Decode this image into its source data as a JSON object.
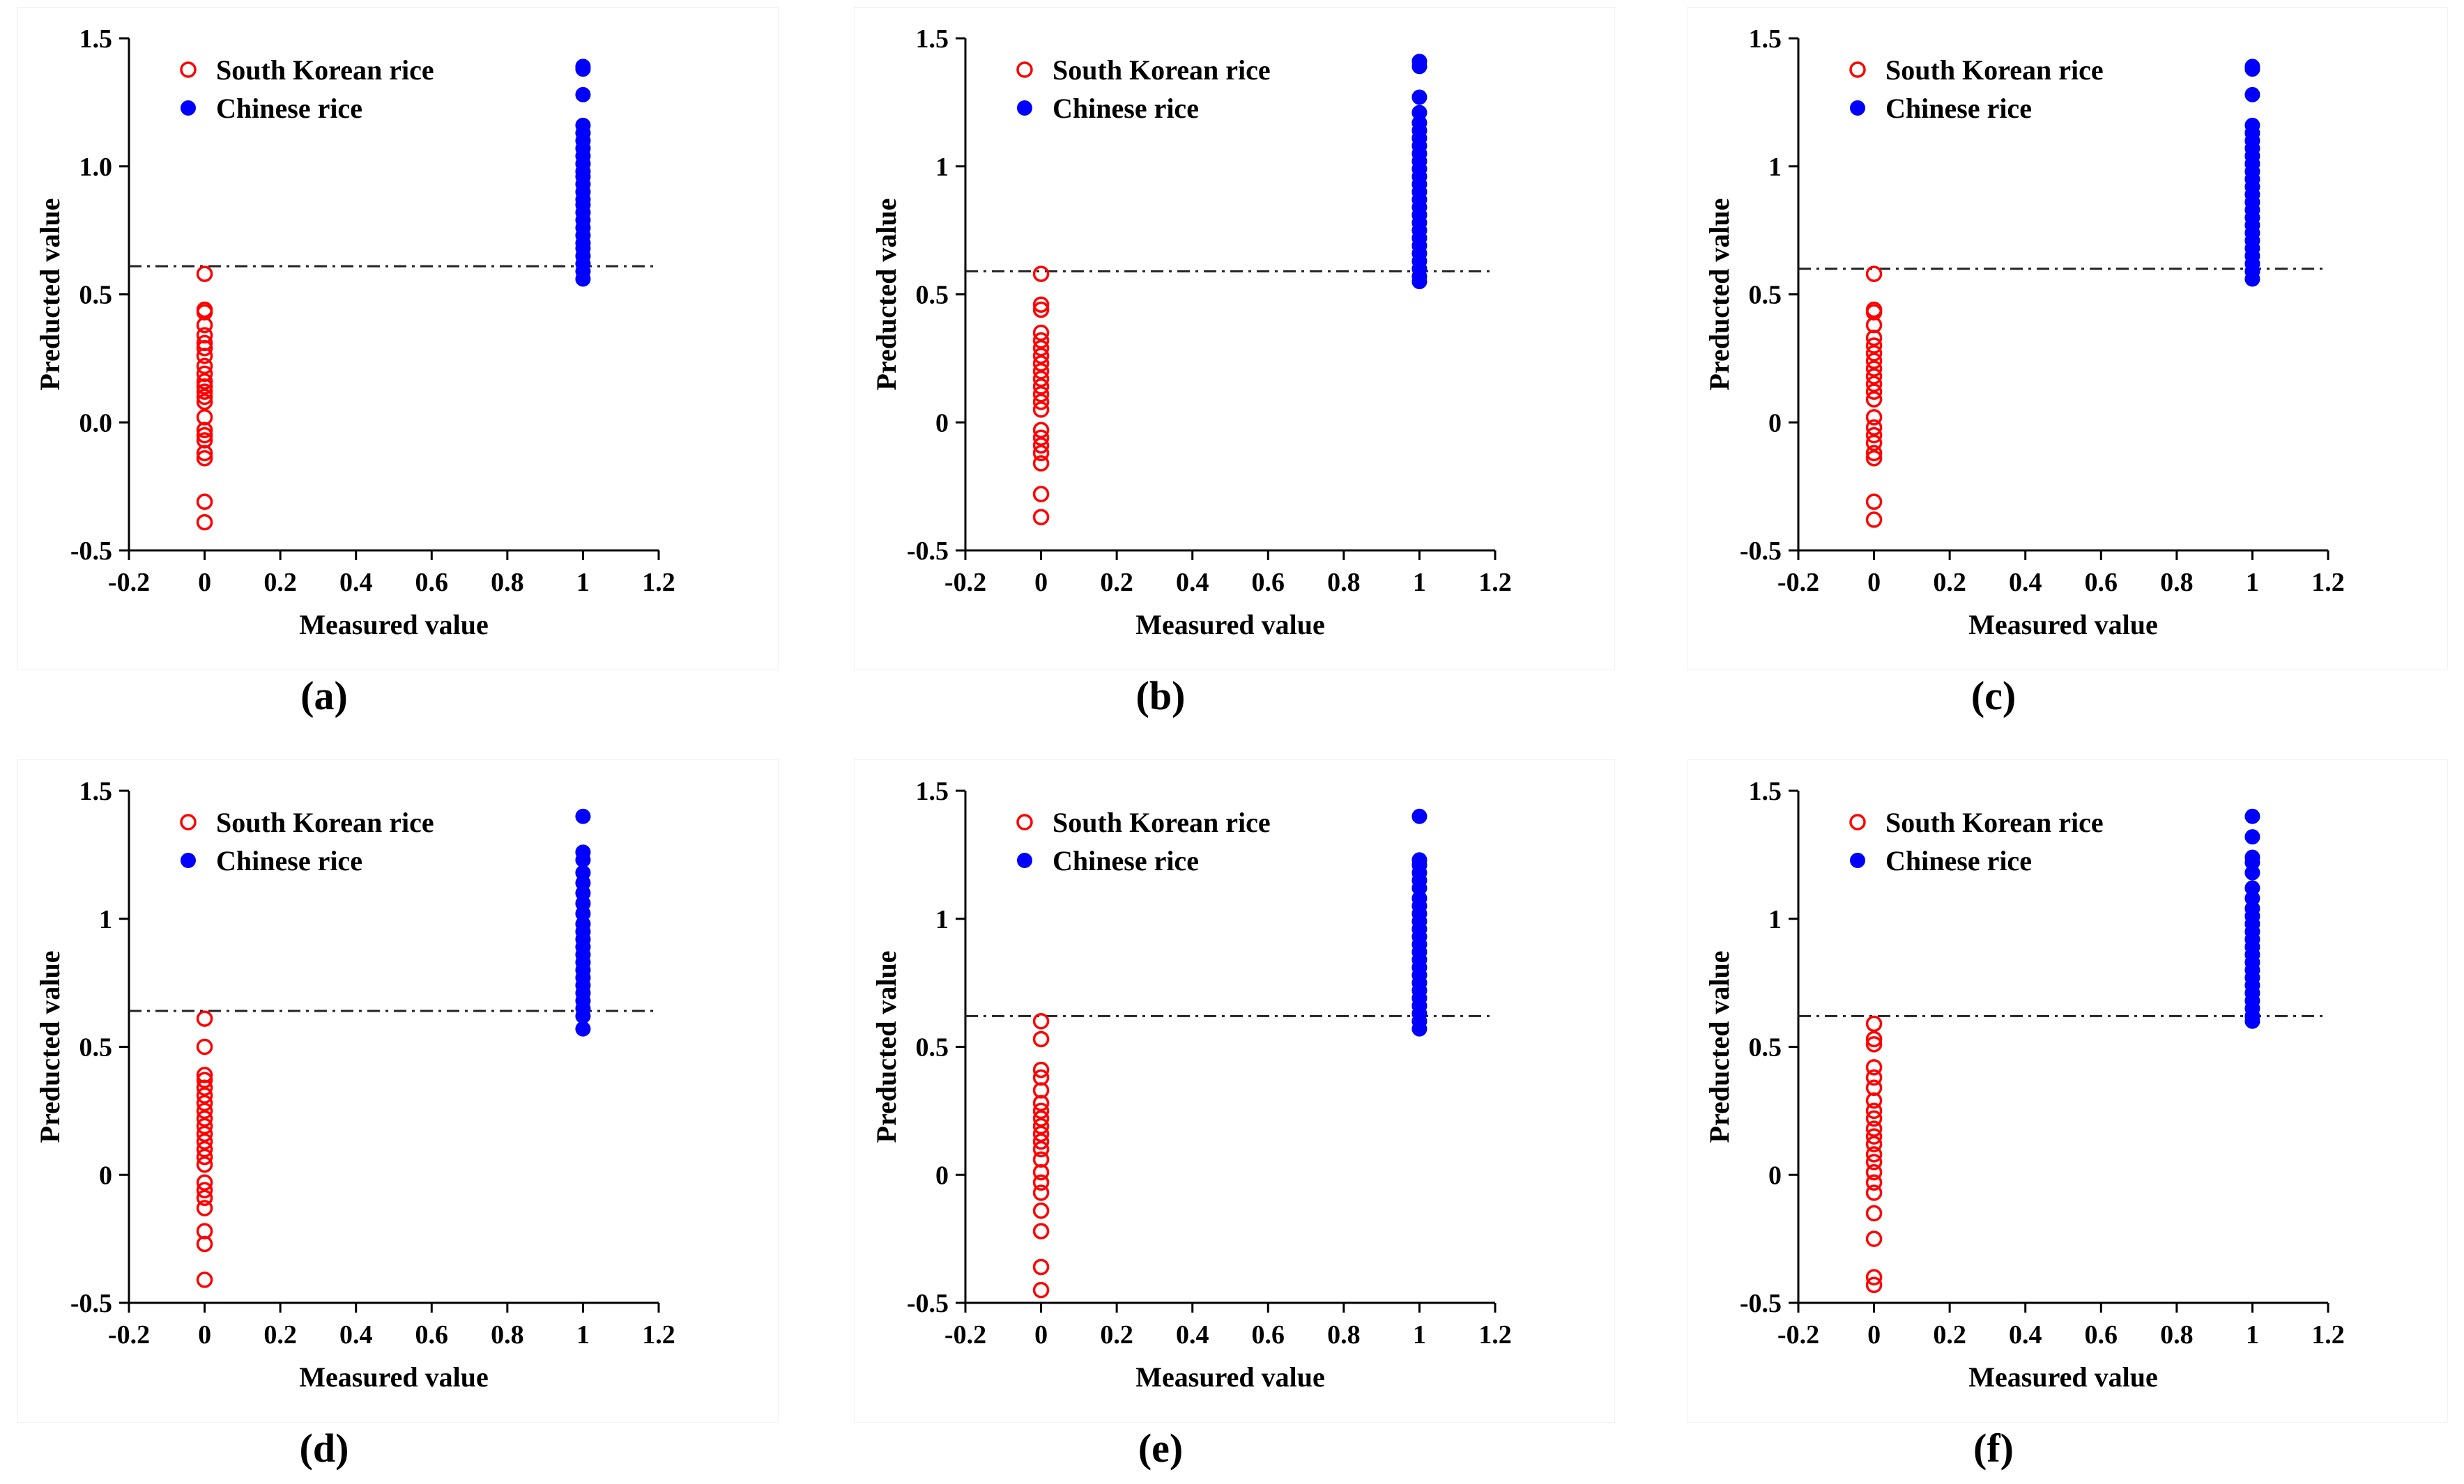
{
  "chart_data": [
    {
      "type": "scatter",
      "panel": "(a)",
      "xlabel": "Measured value",
      "ylabel": "Preducted value",
      "xlim": [
        -0.2,
        1.2
      ],
      "ylim": [
        -0.5,
        1.5
      ],
      "xticks": [
        "-0.2",
        "0",
        "0.2",
        "0.4",
        "0.6",
        "0.8",
        "1",
        "1.2"
      ],
      "yticks": [
        "-0.5",
        "0.0",
        "0.5",
        "1.0",
        "1.5"
      ],
      "threshold": 0.61,
      "legend_position": "top-left",
      "series": [
        {
          "name": "South Korean rice",
          "marker": "open-circle",
          "color": "#ff0000",
          "x": 0,
          "values": [
            0.58,
            0.44,
            0.43,
            0.38,
            0.34,
            0.31,
            0.29,
            0.26,
            0.22,
            0.19,
            0.16,
            0.14,
            0.12,
            0.1,
            0.08,
            0.02,
            -0.03,
            -0.05,
            -0.07,
            -0.12,
            -0.14,
            -0.31,
            -0.39
          ]
        },
        {
          "name": "Chinese rice",
          "marker": "filled-circle",
          "color": "#0000ff",
          "x": 1,
          "values": [
            1.39,
            1.38,
            1.28,
            1.16,
            1.13,
            1.1,
            1.07,
            1.04,
            1.01,
            0.98,
            0.96,
            0.93,
            0.9,
            0.87,
            0.85,
            0.82,
            0.79,
            0.76,
            0.73,
            0.7,
            0.68,
            0.65,
            0.62,
            0.59,
            0.56
          ]
        }
      ]
    },
    {
      "type": "scatter",
      "panel": "(b)",
      "xlabel": "Measured value",
      "ylabel": "Preducted value",
      "xlim": [
        -0.2,
        1.2
      ],
      "ylim": [
        -0.5,
        1.5
      ],
      "xticks": [
        "-0.2",
        "0",
        "0.2",
        "0.4",
        "0.6",
        "0.8",
        "1",
        "1.2"
      ],
      "yticks": [
        "-0.5",
        "0",
        "0.5",
        "1",
        "1.5"
      ],
      "threshold": 0.59,
      "legend_position": "top-left",
      "series": [
        {
          "name": "South Korean rice",
          "marker": "open-circle",
          "color": "#ff0000",
          "x": 0,
          "values": [
            0.58,
            0.46,
            0.44,
            0.35,
            0.32,
            0.29,
            0.26,
            0.23,
            0.2,
            0.17,
            0.14,
            0.11,
            0.08,
            0.05,
            -0.03,
            -0.06,
            -0.09,
            -0.12,
            -0.16,
            -0.28,
            -0.37
          ]
        },
        {
          "name": "Chinese rice",
          "marker": "filled-circle",
          "color": "#0000ff",
          "x": 1,
          "values": [
            1.41,
            1.39,
            1.27,
            1.21,
            1.17,
            1.14,
            1.11,
            1.08,
            1.05,
            1.02,
            0.99,
            0.96,
            0.93,
            0.9,
            0.87,
            0.84,
            0.81,
            0.78,
            0.75,
            0.72,
            0.69,
            0.66,
            0.63,
            0.6,
            0.57,
            0.55
          ]
        }
      ]
    },
    {
      "type": "scatter",
      "panel": "(c)",
      "xlabel": "Measured value",
      "ylabel": "Preducted value",
      "xlim": [
        -0.2,
        1.2
      ],
      "ylim": [
        -0.5,
        1.5
      ],
      "xticks": [
        "-0.2",
        "0",
        "0.2",
        "0.4",
        "0.6",
        "0.8",
        "1",
        "1.2"
      ],
      "yticks": [
        "-0.5",
        "0",
        "0.5",
        "1",
        "1.5"
      ],
      "threshold": 0.6,
      "legend_position": "top-left",
      "series": [
        {
          "name": "South Korean rice",
          "marker": "open-circle",
          "color": "#ff0000",
          "x": 0,
          "values": [
            0.58,
            0.44,
            0.43,
            0.38,
            0.33,
            0.3,
            0.27,
            0.24,
            0.21,
            0.18,
            0.15,
            0.12,
            0.09,
            0.02,
            -0.02,
            -0.05,
            -0.08,
            -0.12,
            -0.14,
            -0.31,
            -0.38
          ]
        },
        {
          "name": "Chinese rice",
          "marker": "filled-circle",
          "color": "#0000ff",
          "x": 1,
          "values": [
            1.39,
            1.38,
            1.28,
            1.16,
            1.13,
            1.1,
            1.07,
            1.04,
            1.01,
            0.98,
            0.95,
            0.92,
            0.89,
            0.86,
            0.83,
            0.8,
            0.77,
            0.74,
            0.71,
            0.68,
            0.65,
            0.62,
            0.59,
            0.56
          ]
        }
      ]
    },
    {
      "type": "scatter",
      "panel": "(d)",
      "xlabel": "Measured value",
      "ylabel": "Preducted value",
      "xlim": [
        -0.2,
        1.2
      ],
      "ylim": [
        -0.5,
        1.5
      ],
      "xticks": [
        "-0.2",
        "0",
        "0.2",
        "0.4",
        "0.6",
        "0.8",
        "1",
        "1.2"
      ],
      "yticks": [
        "-0.5",
        "0",
        "0.5",
        "1",
        "1.5"
      ],
      "threshold": 0.64,
      "legend_position": "top-left",
      "series": [
        {
          "name": "South Korean rice",
          "marker": "open-circle",
          "color": "#ff0000",
          "x": 0,
          "values": [
            0.61,
            0.5,
            0.39,
            0.37,
            0.34,
            0.31,
            0.28,
            0.25,
            0.22,
            0.19,
            0.16,
            0.13,
            0.1,
            0.07,
            0.04,
            -0.03,
            -0.06,
            -0.09,
            -0.13,
            -0.22,
            -0.27,
            -0.41
          ]
        },
        {
          "name": "Chinese rice",
          "marker": "filled-circle",
          "color": "#0000ff",
          "x": 1,
          "values": [
            1.4,
            1.26,
            1.23,
            1.18,
            1.14,
            1.1,
            1.06,
            1.02,
            0.98,
            0.95,
            0.92,
            0.89,
            0.86,
            0.83,
            0.8,
            0.77,
            0.74,
            0.71,
            0.68,
            0.65,
            0.62,
            0.57
          ]
        }
      ]
    },
    {
      "type": "scatter",
      "panel": "(e)",
      "xlabel": "Measured value",
      "ylabel": "Preducted value",
      "xlim": [
        -0.2,
        1.2
      ],
      "ylim": [
        -0.5,
        1.5
      ],
      "xticks": [
        "-0.2",
        "0",
        "0.2",
        "0.4",
        "0.6",
        "0.8",
        "1",
        "1.2"
      ],
      "yticks": [
        "-0.5",
        "0",
        "0.5",
        "1",
        "1.5"
      ],
      "threshold": 0.62,
      "legend_position": "top-left",
      "series": [
        {
          "name": "South Korean rice",
          "marker": "open-circle",
          "color": "#ff0000",
          "x": 0,
          "values": [
            0.6,
            0.53,
            0.41,
            0.38,
            0.33,
            0.28,
            0.25,
            0.22,
            0.19,
            0.16,
            0.13,
            0.1,
            0.06,
            0.01,
            -0.03,
            -0.07,
            -0.14,
            -0.22,
            -0.36,
            -0.45
          ]
        },
        {
          "name": "Chinese rice",
          "marker": "filled-circle",
          "color": "#0000ff",
          "x": 1,
          "values": [
            1.4,
            1.23,
            1.21,
            1.18,
            1.15,
            1.12,
            1.08,
            1.05,
            1.02,
            0.99,
            0.96,
            0.93,
            0.9,
            0.87,
            0.84,
            0.81,
            0.78,
            0.75,
            0.72,
            0.69,
            0.66,
            0.63,
            0.6,
            0.57
          ]
        }
      ]
    },
    {
      "type": "scatter",
      "panel": "(f)",
      "xlabel": "Measured value",
      "ylabel": "Preducted value",
      "xlim": [
        -0.2,
        1.2
      ],
      "ylim": [
        -0.5,
        1.5
      ],
      "xticks": [
        "-0.2",
        "0",
        "0.2",
        "0.4",
        "0.6",
        "0.8",
        "1",
        "1.2"
      ],
      "yticks": [
        "-0.5",
        "0",
        "0.5",
        "1",
        "1.5"
      ],
      "threshold": 0.62,
      "legend_position": "top-left",
      "series": [
        {
          "name": "South Korean rice",
          "marker": "open-circle",
          "color": "#ff0000",
          "x": 0,
          "values": [
            0.59,
            0.53,
            0.51,
            0.42,
            0.38,
            0.34,
            0.29,
            0.25,
            0.22,
            0.18,
            0.15,
            0.12,
            0.08,
            0.05,
            0.01,
            -0.03,
            -0.07,
            -0.15,
            -0.25,
            -0.4,
            -0.43
          ]
        },
        {
          "name": "Chinese rice",
          "marker": "filled-circle",
          "color": "#0000ff",
          "x": 1,
          "values": [
            1.4,
            1.32,
            1.24,
            1.22,
            1.18,
            1.12,
            1.08,
            1.04,
            1.01,
            0.98,
            0.95,
            0.92,
            0.89,
            0.86,
            0.83,
            0.8,
            0.77,
            0.74,
            0.71,
            0.68,
            0.65,
            0.62,
            0.6
          ]
        }
      ]
    }
  ]
}
